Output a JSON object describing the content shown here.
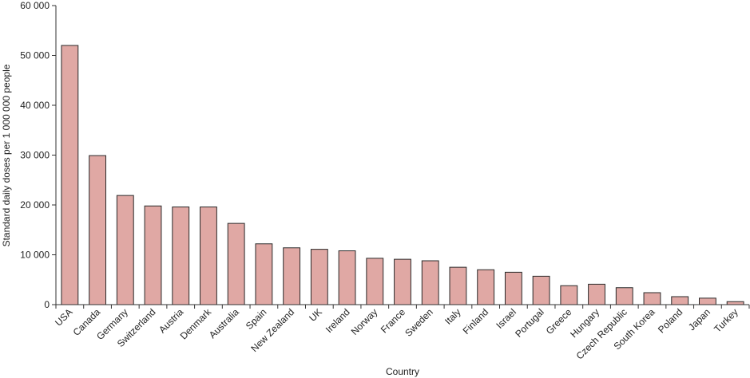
{
  "chart_data": {
    "type": "bar",
    "title": "",
    "xlabel": "Country",
    "ylabel": "Standard daily doses per 1 000 000 people",
    "categories": [
      "USA",
      "Canada",
      "Germany",
      "Switzerland",
      "Austria",
      "Denmark",
      "Australia",
      "Spain",
      "New Zealand",
      "UK",
      "Ireland",
      "Norway",
      "France",
      "Sweden",
      "Italy",
      "Finland",
      "Israel",
      "Portugal",
      "Greece",
      "Hungary",
      "Czech Republic",
      "South Korea",
      "Poland",
      "Japan",
      "Turkey"
    ],
    "values": [
      52000,
      29900,
      21900,
      19800,
      19600,
      19600,
      16300,
      12200,
      11400,
      11100,
      10800,
      9300,
      9100,
      8800,
      7500,
      7000,
      6500,
      5700,
      3800,
      4100,
      3400,
      2400,
      1600,
      1300,
      600
    ],
    "ylim": [
      0,
      60000
    ],
    "yticks": [
      0,
      10000,
      20000,
      30000,
      40000,
      50000,
      60000
    ],
    "ytick_labels": [
      "0",
      "10 000",
      "20 000",
      "30 000",
      "40 000",
      "50 000",
      "60 000"
    ],
    "grid": false,
    "legend": "none",
    "colors": {
      "bar_fill": "#e0a8a4",
      "bar_stroke": "#2a2a2a",
      "axis": "#333333"
    }
  }
}
